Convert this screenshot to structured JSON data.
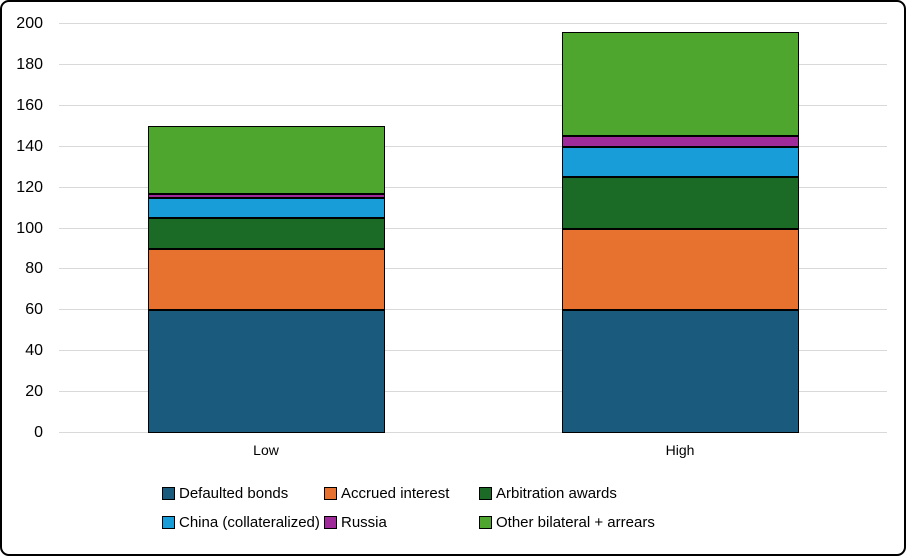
{
  "figure": {
    "background": "#FFFFFF",
    "border_color": "#000000",
    "gridline_color": "#D9D9D9",
    "bar_border_color": "#000000",
    "text_color": "#000000"
  },
  "chart_data": {
    "type": "bar",
    "stacked": true,
    "title": "",
    "xlabel": "",
    "ylabel": "",
    "categories": [
      "Low",
      "High"
    ],
    "series": [
      {
        "name": "Defaulted bonds",
        "color": "#1A5B7D",
        "values": [
          60,
          60
        ]
      },
      {
        "name": "Accrued interest",
        "color": "#E7722F",
        "values": [
          30,
          40
        ]
      },
      {
        "name": "Arbitration awards",
        "color": "#1B6B27",
        "values": [
          15,
          25
        ]
      },
      {
        "name": "China (collateralized)",
        "color": "#189DD9",
        "values": [
          10,
          15
        ]
      },
      {
        "name": "Russia",
        "color": "#9E2B99",
        "values": [
          2,
          5
        ]
      },
      {
        "name": "Other bilateral + arrears",
        "color": "#4FA62F",
        "values": [
          33,
          51
        ]
      }
    ],
    "totals": [
      150,
      196
    ],
    "ylim": [
      0,
      200
    ],
    "yticks": [
      0,
      20,
      40,
      60,
      80,
      100,
      120,
      140,
      160,
      180,
      200
    ],
    "grid": true,
    "legend_position": "bottom"
  }
}
